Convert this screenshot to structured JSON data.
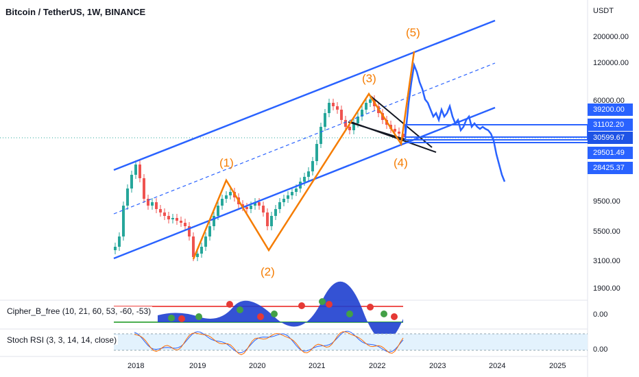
{
  "title": "Bitcoin / TetherUS, 1W, BINANCE",
  "currency_label": "USDT",
  "price_axis": [
    "200000.00",
    "120000.00",
    "60000.00",
    "9500.00",
    "5500.00",
    "3100.00",
    "1900.00"
  ],
  "price_tags": [
    "39200.00",
    "31102.20",
    "30599.67",
    "29501.49",
    "28425.37"
  ],
  "time_axis": [
    "2018",
    "2019",
    "2020",
    "2021",
    "2022",
    "2023",
    "2024",
    "2025"
  ],
  "wave_labels": [
    "(1)",
    "(2)",
    "(3)",
    "(4)",
    "(5)"
  ],
  "cipher": {
    "label": "Cipher_B_free (10, 21, 60, 53, -60, -53)",
    "axis": "0.00"
  },
  "stoch": {
    "label": "Stoch RSI (3, 3, 14, 14, close)",
    "axis": "0.00"
  },
  "colors": {
    "wave": "#f57c00",
    "channel": "#2962ff",
    "up": "#26a69a",
    "down": "#ef5350",
    "projection": "#2962ff"
  }
}
